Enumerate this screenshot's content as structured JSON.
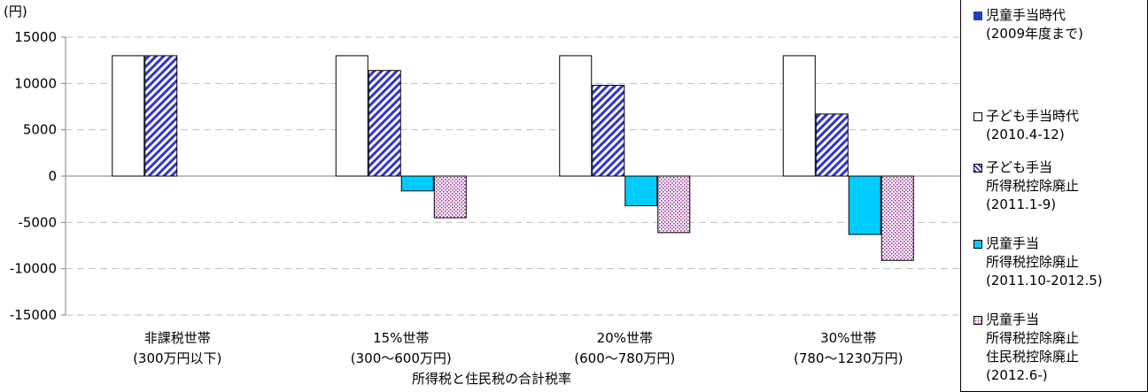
{
  "chart_data": {
    "type": "bar",
    "ylabel_unit": "(円)",
    "xlabel": "所得税と住民税の合計税率",
    "ylim": [
      -15000,
      15000
    ],
    "yticks": [
      15000,
      10000,
      5000,
      0,
      -5000,
      -10000,
      -15000
    ],
    "grid": true,
    "legend_position": "right",
    "categories": [
      {
        "line1": "非課税世帯",
        "line2": "(300万円以下)"
      },
      {
        "line1": "15%世帯",
        "line2": "(300〜600万円)"
      },
      {
        "line1": "20%世帯",
        "line2": "(600〜780万円)"
      },
      {
        "line1": "30%世帯",
        "line2": "(780〜1230万円)"
      }
    ],
    "series": [
      {
        "name_lines": [
          "児童手当時代",
          "(2009年度まで)"
        ],
        "fill": "solid",
        "color": "#1f3fbf",
        "values": [
          0,
          0,
          0,
          0
        ]
      },
      {
        "name_lines": [
          "子ども手当時代",
          "(2010.4-12)"
        ],
        "fill": "white",
        "color": "#ffffff",
        "values": [
          13000,
          13000,
          13000,
          13000
        ]
      },
      {
        "name_lines": [
          "子ども手当",
          "所得税控除廃止",
          "(2011.1-9)"
        ],
        "fill": "diagonal",
        "color": "#3333cc",
        "values": [
          13000,
          11400,
          9800,
          6700
        ]
      },
      {
        "name_lines": [
          "児童手当",
          "所得税控除廃止",
          "(2011.10-2012.5)"
        ],
        "fill": "solid",
        "color": "#00ccff",
        "values": [
          0,
          -1600,
          -3200,
          -6300
        ]
      },
      {
        "name_lines": [
          "児童手当",
          "所得税控除廃止",
          "住民税控除廃止",
          "(2012.6-)"
        ],
        "fill": "dots",
        "color": "#993399",
        "values": [
          0,
          -4500,
          -6100,
          -9100
        ]
      }
    ]
  }
}
